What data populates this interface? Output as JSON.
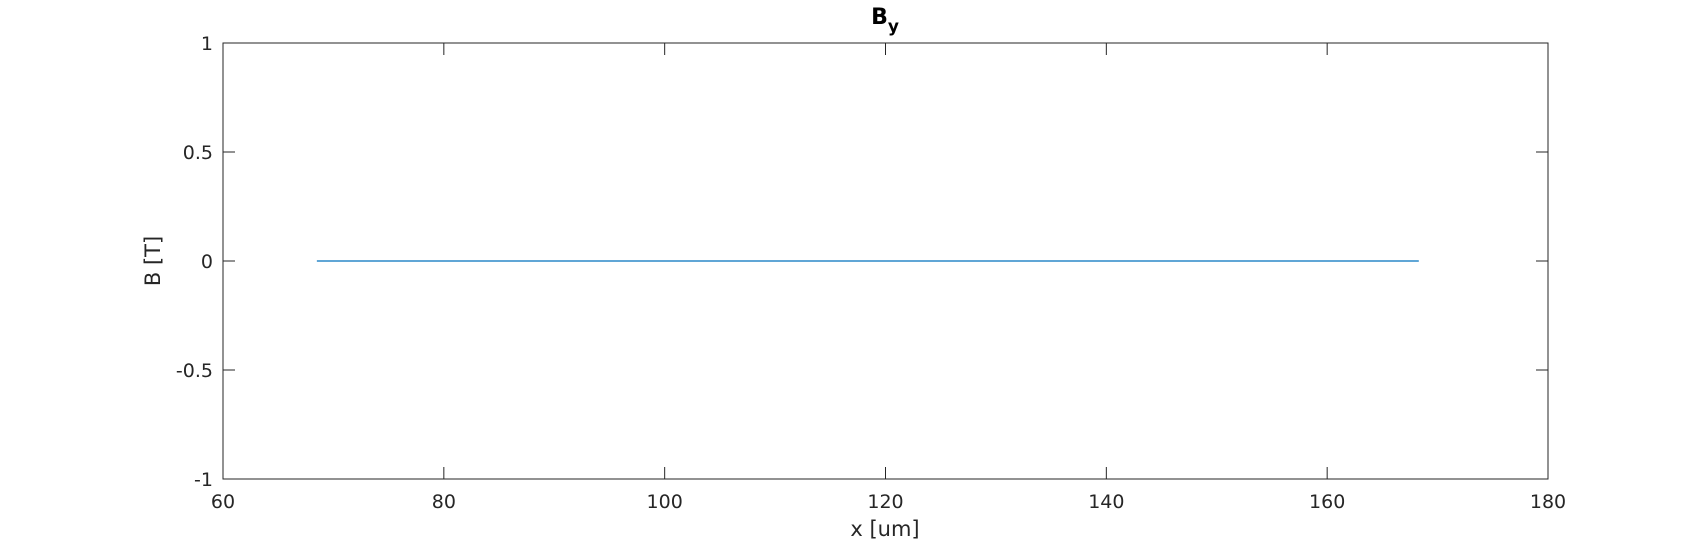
{
  "chart_data": {
    "type": "line",
    "title": {
      "main": "B",
      "subscript": "y"
    },
    "xlabel": "x [um]",
    "ylabel": "B [T]",
    "xlim": [
      60,
      180
    ],
    "ylim": [
      -1,
      1
    ],
    "xticks": [
      60,
      80,
      100,
      120,
      140,
      160,
      180
    ],
    "yticks": [
      -1,
      -0.5,
      0,
      0.5,
      1
    ],
    "xtick_labels": [
      "60",
      "80",
      "100",
      "120",
      "140",
      "160",
      "180"
    ],
    "ytick_labels": [
      "-1",
      "-0.5",
      "0",
      "0.5",
      "1"
    ],
    "grid": false,
    "box": true,
    "series": [
      {
        "x": [
          68.5,
          168.3
        ],
        "y": [
          0,
          0
        ],
        "color": "#0072BD"
      }
    ]
  },
  "colors": {
    "axes": "#262626",
    "background": "#ffffff",
    "series": "#0072BD"
  }
}
